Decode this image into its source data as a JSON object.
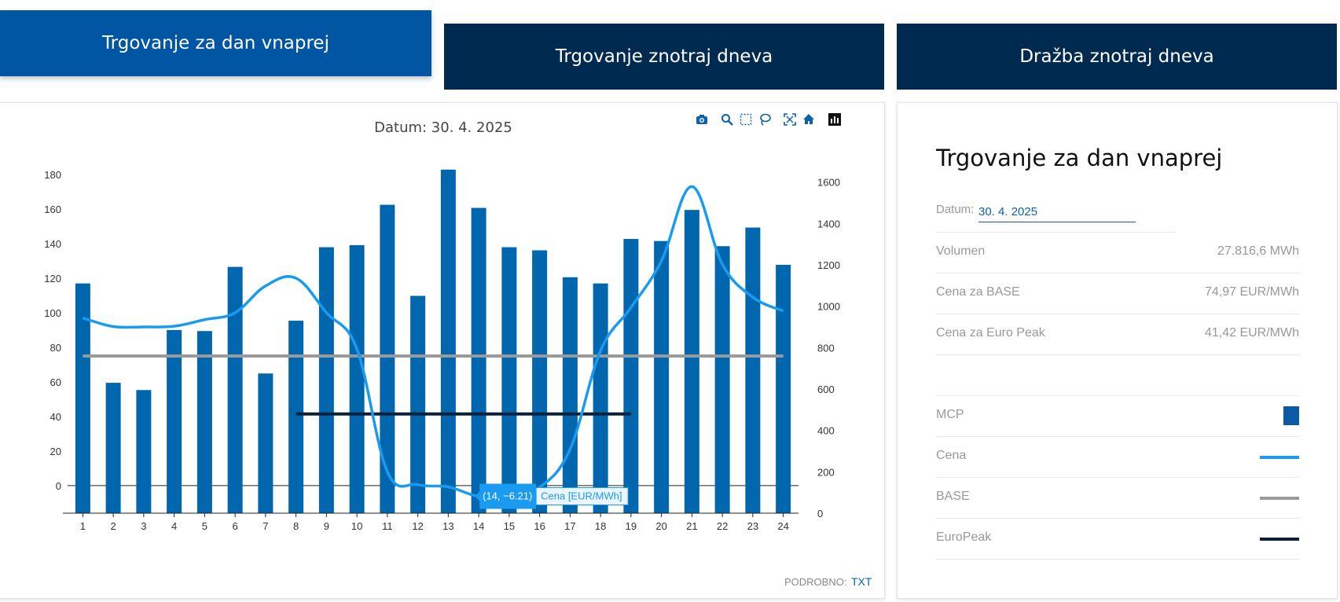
{
  "tabs": [
    {
      "label": "Trgovanje za dan vnaprej",
      "active": true
    },
    {
      "label": "Trgovanje znotraj dneva",
      "active": false
    },
    {
      "label": "Dražba znotraj dneva",
      "active": false
    }
  ],
  "toolbar_icons": [
    "camera-icon",
    "zoom-icon",
    "box-select-icon",
    "lasso-icon",
    "autoscale-icon",
    "home-icon",
    "plotly-logo-icon"
  ],
  "chart_data": {
    "type": "bar+line",
    "title": "Datum: 30. 4. 2025",
    "categories": [
      "1",
      "2",
      "3",
      "4",
      "5",
      "6",
      "7",
      "8",
      "9",
      "10",
      "11",
      "12",
      "13",
      "14",
      "15",
      "16",
      "17",
      "18",
      "19",
      "20",
      "21",
      "22",
      "23",
      "24"
    ],
    "series": [
      {
        "name": "MCP",
        "type": "bar",
        "axis": "right",
        "color": "#0066ad",
        "values": [
          1110,
          630,
          595,
          885,
          880,
          1190,
          675,
          930,
          1285,
          1295,
          1490,
          1050,
          1660,
          1475,
          1285,
          1270,
          1140,
          1110,
          1325,
          1315,
          1465,
          1290,
          1380,
          1200
        ]
      },
      {
        "name": "Cena",
        "display": "Cena [EUR/MWh]",
        "type": "line",
        "axis": "left",
        "color": "#1a9bf0",
        "values": [
          97,
          92,
          91.8,
          92.2,
          96,
          100,
          115.5,
          120,
          100,
          79,
          8,
          0.5,
          -0.8,
          -6.21,
          -5.5,
          -1,
          21,
          78,
          103,
          130,
          173,
          128,
          109,
          101
        ]
      },
      {
        "name": "BASE",
        "type": "line",
        "axis": "left",
        "color": "#9a9a9a",
        "x_range": [
          1,
          24
        ],
        "value": 74.97
      },
      {
        "name": "EuroPeak",
        "type": "line",
        "axis": "left",
        "color": "#0a2038",
        "x_range": [
          8,
          19
        ],
        "value": 41.42
      }
    ],
    "y_left": {
      "ticks": [
        0,
        20,
        40,
        60,
        80,
        100,
        120,
        140,
        160,
        180
      ],
      "range": [
        -16,
        190
      ]
    },
    "y_right": {
      "ticks": [
        0,
        200,
        400,
        600,
        800,
        1000,
        1200,
        1400,
        1600
      ],
      "range": [
        0,
        1720
      ]
    },
    "tooltip": {
      "label": "(14, −6.21)",
      "series": "Cena [EUR/MWh]",
      "x": 14,
      "y": -6.21
    }
  },
  "footer": {
    "label": "PODROBNO:",
    "link": "TXT"
  },
  "info": {
    "title": "Trgovanje za dan vnaprej",
    "date_label": "Datum:",
    "date_value": "30. 4. 2025",
    "rows": [
      {
        "label": "Volumen",
        "value": "27.816,6 MWh"
      },
      {
        "label": "Cena za BASE",
        "value": "74,97 EUR/MWh"
      },
      {
        "label": "Cena za Euro Peak",
        "value": "41,42 EUR/MWh"
      }
    ],
    "legend": [
      {
        "label": "MCP",
        "kind": "square",
        "color": "#0b5aa6"
      },
      {
        "label": "Cena",
        "kind": "line",
        "color": "#1a9bf0"
      },
      {
        "label": "BASE",
        "kind": "line",
        "color": "#9a9a9a"
      },
      {
        "label": "EuroPeak",
        "kind": "line",
        "color": "#0a2038"
      }
    ]
  }
}
